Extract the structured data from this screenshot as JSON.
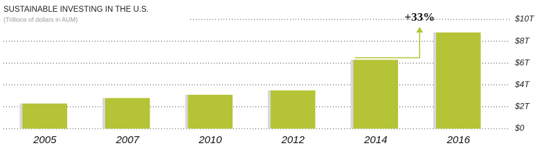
{
  "chart_data": {
    "type": "bar",
    "title": "SUSTAINABLE INVESTING IN THE U.S.",
    "subtitle": "(Trillions of dollars in AUM)",
    "annotation": "+33%",
    "categories": [
      "2005",
      "2007",
      "2010",
      "2012",
      "2014",
      "2016"
    ],
    "values": [
      2.3,
      2.8,
      3.1,
      3.5,
      6.3,
      8.8
    ],
    "color": "#b5c336",
    "ylim": [
      0,
      10
    ],
    "yticks": [
      {
        "value": 0,
        "label": "$0"
      },
      {
        "value": 2,
        "label": "$2T"
      },
      {
        "value": 4,
        "label": "$4T"
      },
      {
        "value": 6,
        "label": "$6T"
      },
      {
        "value": 8,
        "label": "$8T"
      },
      {
        "value": 10,
        "label": "$10T"
      }
    ],
    "grid": true
  }
}
